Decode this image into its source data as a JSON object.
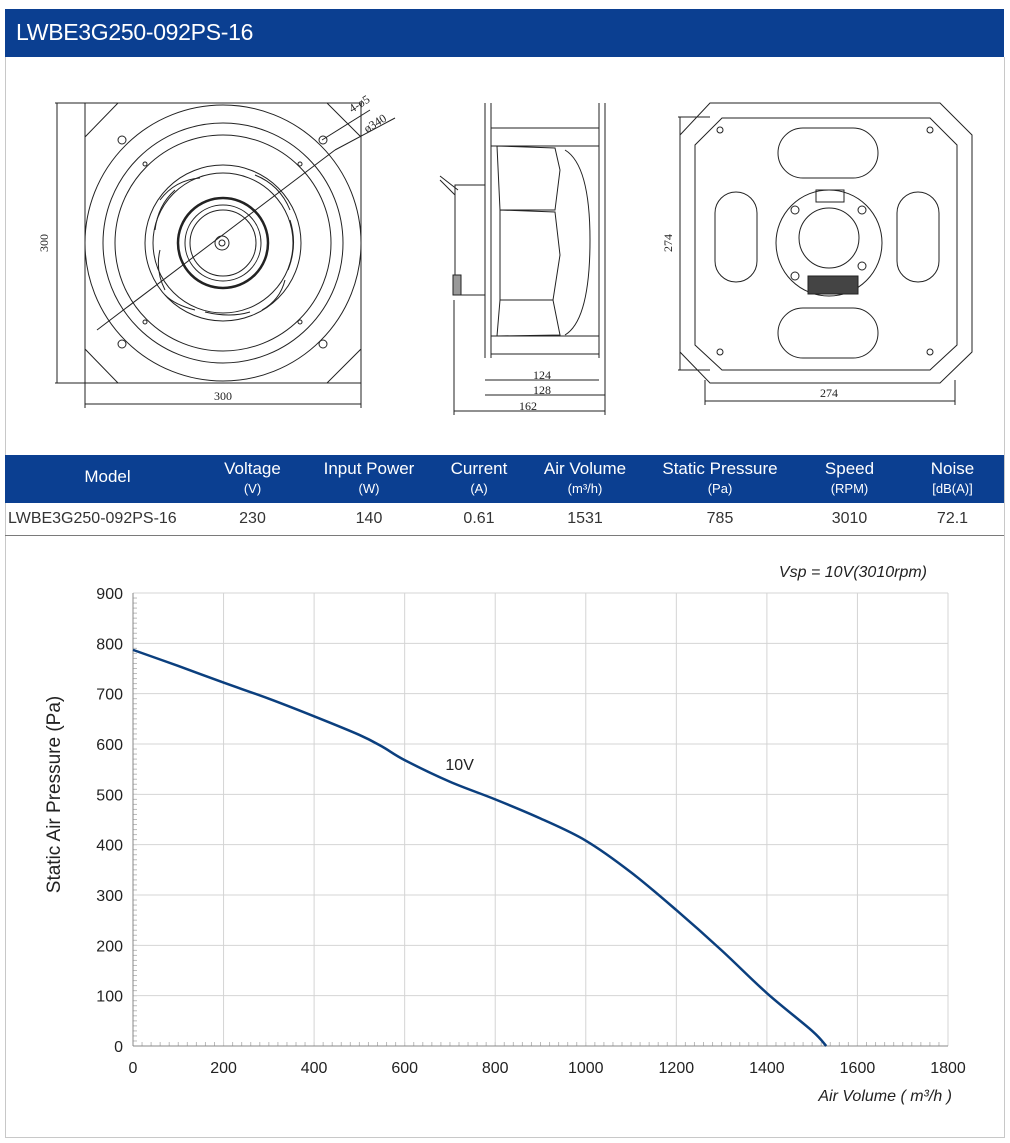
{
  "header": {
    "title": "LWBE3G250-092PS-16"
  },
  "drawing": {
    "front": {
      "height_dim": "300",
      "width_dim": "300",
      "holes_label": "4-ø5",
      "diameter_label": "ø340"
    },
    "side": {
      "dim1": "124",
      "dim2": "128",
      "dim3": "162"
    },
    "back": {
      "height_dim": "274",
      "width_dim": "274"
    }
  },
  "spec_table": {
    "headers": [
      {
        "name": "Model",
        "unit": ""
      },
      {
        "name": "Voltage",
        "unit": "(V)"
      },
      {
        "name": "Input Power",
        "unit": "(W)"
      },
      {
        "name": "Current",
        "unit": "(A)"
      },
      {
        "name": "Air Volume",
        "unit": "(m³/h)"
      },
      {
        "name": "Static Pressure",
        "unit": "(Pa)"
      },
      {
        "name": "Speed",
        "unit": "(RPM)"
      },
      {
        "name": "Noise",
        "unit": "[dB(A)]"
      }
    ],
    "row": [
      "LWBE3G250-092PS-16",
      "230",
      "140",
      "0.61",
      "1531",
      "785",
      "3010",
      "72.1"
    ]
  },
  "chart_data": {
    "type": "line",
    "title": "",
    "annotation": "Vsp = 10V(3010rpm)",
    "xlabel": "Air Volume ( m³/h )",
    "ylabel": "Static Air Pressure  (Pa)",
    "xlim": [
      0,
      1800
    ],
    "ylim": [
      0,
      900
    ],
    "xticks": [
      0,
      200,
      400,
      600,
      800,
      1000,
      1200,
      1400,
      1600,
      1800
    ],
    "yticks": [
      0,
      100,
      200,
      300,
      400,
      500,
      600,
      700,
      800,
      900
    ],
    "grid": true,
    "series": [
      {
        "name": "10V",
        "color": "#0b3f7e",
        "x": [
          0,
          100,
          200,
          300,
          400,
          500,
          550,
          600,
          700,
          800,
          900,
          1000,
          1100,
          1200,
          1300,
          1400,
          1500,
          1531
        ],
        "y": [
          787,
          755,
          722,
          690,
          655,
          618,
          595,
          568,
          525,
          490,
          452,
          408,
          345,
          270,
          190,
          105,
          30,
          0
        ]
      }
    ]
  }
}
